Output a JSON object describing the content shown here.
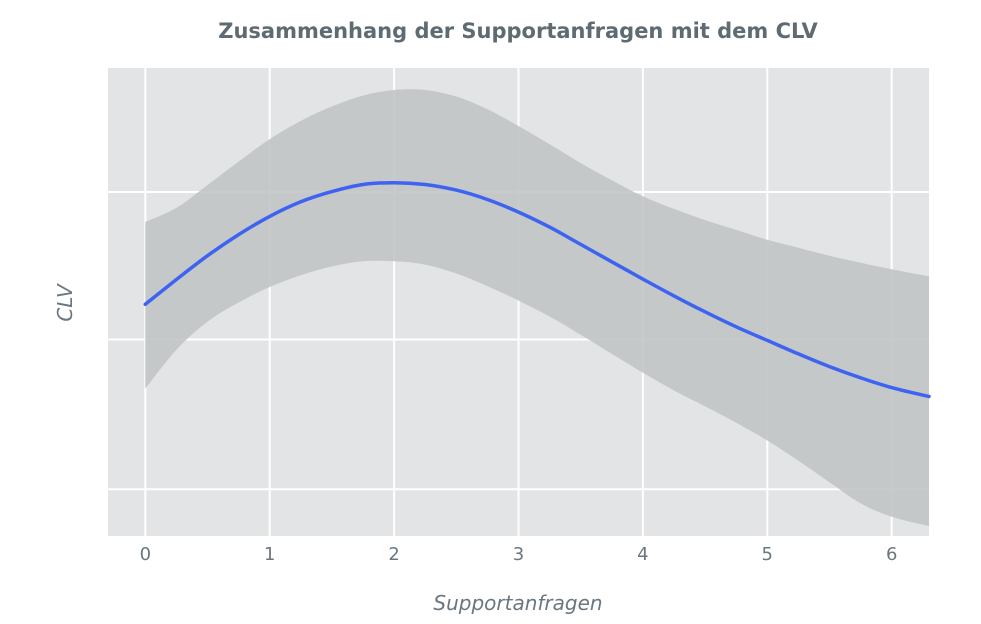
{
  "chart_data": {
    "type": "line",
    "title": "Zusammenhang der Supportanfragen mit dem CLV",
    "xlabel": "Supportanfragen",
    "ylabel": "CLV",
    "xlim": [
      -0.3,
      6.3
    ],
    "ylim": [
      0,
      1
    ],
    "x_ticks": [
      0,
      1,
      2,
      3,
      4,
      5,
      6
    ],
    "y_tick_labels_shown": false,
    "grid": true,
    "legend": "none",
    "series": [
      {
        "kind": "fit-line",
        "color": "#3d63f0",
        "x": [
          0,
          0.25,
          0.5,
          0.75,
          1,
          1.25,
          1.5,
          1.75,
          2,
          2.25,
          2.5,
          2.75,
          3,
          3.25,
          3.5,
          3.75,
          4,
          4.25,
          4.5,
          4.75,
          5,
          5.25,
          5.5,
          5.75,
          6,
          6.3
        ],
        "y": [
          0.495,
          0.548,
          0.599,
          0.644,
          0.683,
          0.714,
          0.736,
          0.751,
          0.755,
          0.751,
          0.739,
          0.719,
          0.692,
          0.66,
          0.623,
          0.586,
          0.549,
          0.513,
          0.479,
          0.447,
          0.418,
          0.389,
          0.362,
          0.338,
          0.317,
          0.298
        ]
      }
    ],
    "confidence_band": {
      "color": "#c2c4c5",
      "x": [
        0,
        0.25,
        0.5,
        0.75,
        1,
        1.25,
        1.5,
        1.75,
        2,
        2.25,
        2.5,
        2.75,
        3,
        3.25,
        3.5,
        3.75,
        4,
        4.25,
        4.5,
        4.75,
        5,
        5.25,
        5.5,
        5.75,
        6,
        6.3
      ],
      "upper": [
        0.671,
        0.701,
        0.75,
        0.8,
        0.848,
        0.887,
        0.918,
        0.941,
        0.953,
        0.953,
        0.939,
        0.912,
        0.876,
        0.837,
        0.797,
        0.76,
        0.726,
        0.699,
        0.675,
        0.654,
        0.633,
        0.616,
        0.599,
        0.584,
        0.57,
        0.555
      ],
      "lower": [
        0.315,
        0.398,
        0.458,
        0.499,
        0.532,
        0.557,
        0.576,
        0.587,
        0.587,
        0.58,
        0.561,
        0.534,
        0.503,
        0.469,
        0.43,
        0.389,
        0.349,
        0.311,
        0.277,
        0.242,
        0.204,
        0.161,
        0.115,
        0.07,
        0.041,
        0.021
      ]
    }
  }
}
